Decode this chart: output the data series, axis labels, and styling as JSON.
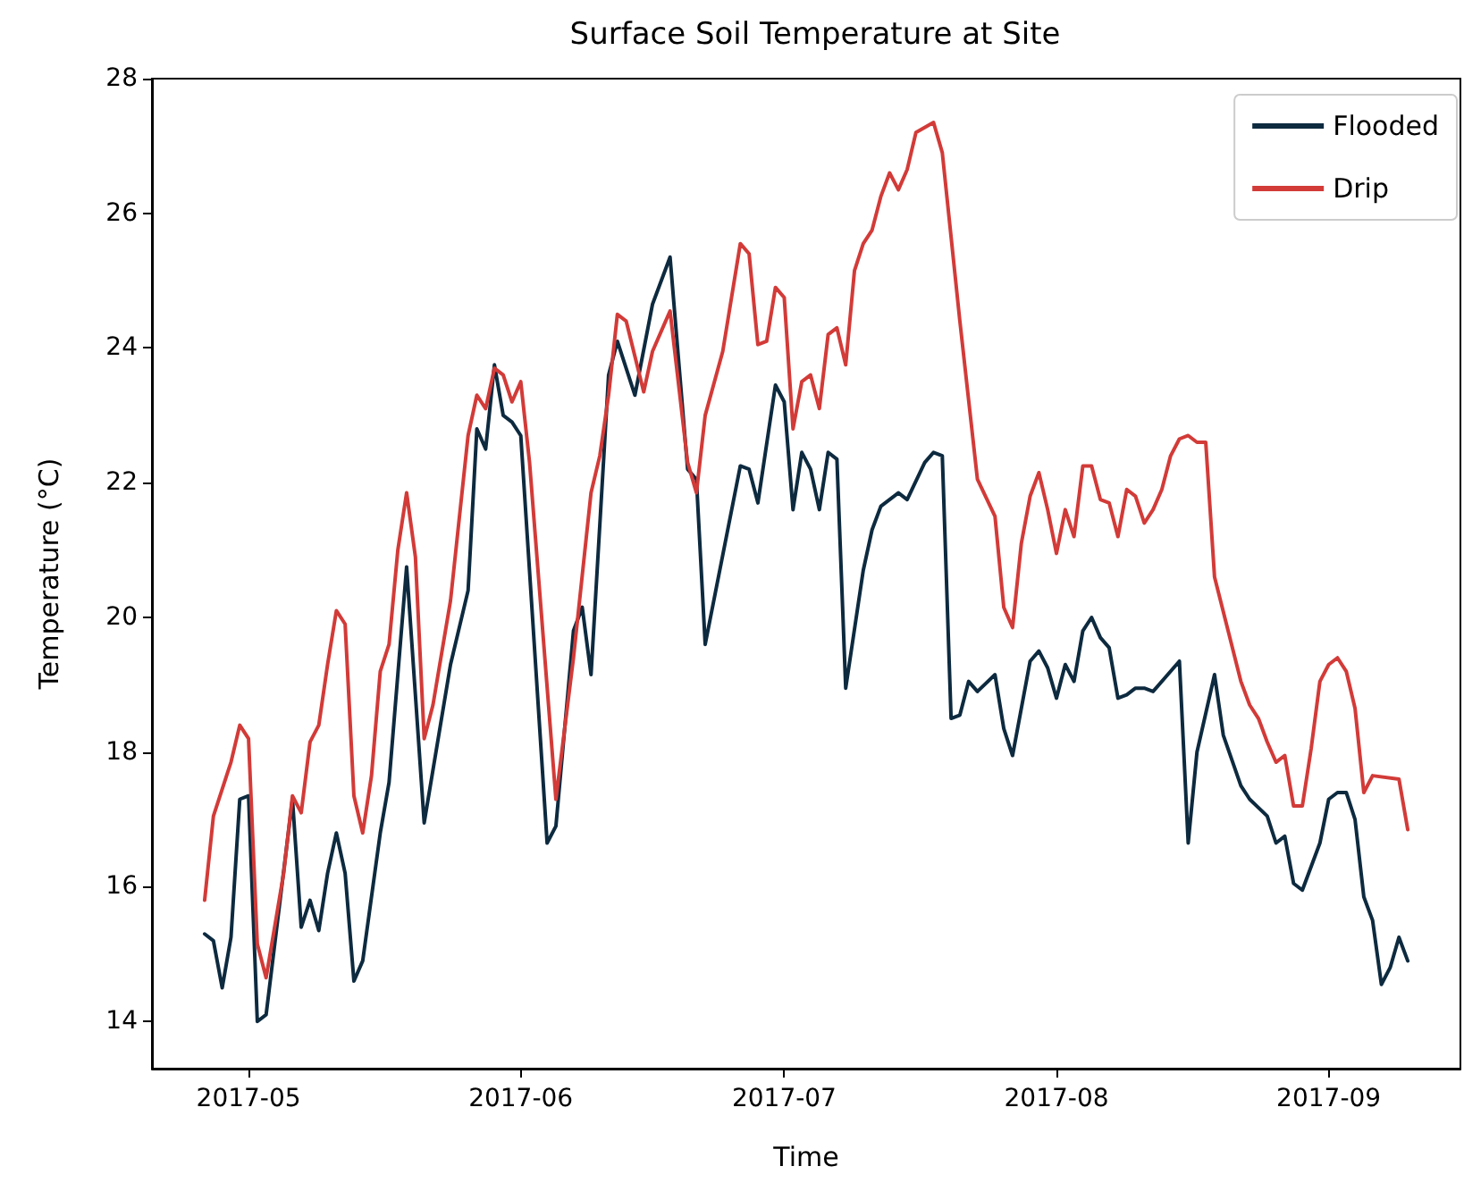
{
  "chart_data": {
    "type": "line",
    "title": "Surface Soil Temperature at Site",
    "xlabel": "Time",
    "ylabel": "Temperature (°C)",
    "xlim": [
      "2017-04-20",
      "2017-09-16"
    ],
    "xticks": [
      {
        "value": "2017-05-01",
        "label": "2017-05"
      },
      {
        "value": "2017-06-01",
        "label": "2017-06"
      },
      {
        "value": "2017-07-01",
        "label": "2017-07"
      },
      {
        "value": "2017-08-01",
        "label": "2017-08"
      },
      {
        "value": "2017-09-01",
        "label": "2017-09"
      }
    ],
    "ylim": [
      13.3,
      28
    ],
    "yticks": [
      14,
      16,
      18,
      20,
      22,
      24,
      26,
      28
    ],
    "grid": false,
    "legend": "top right",
    "marker": "none",
    "line_style": "solid",
    "series": [
      {
        "name": "Flooded",
        "color": "#0d2a3f",
        "x": [
          "2017-04-26",
          "2017-04-27",
          "2017-04-28",
          "2017-04-29",
          "2017-04-30",
          "2017-05-01",
          "2017-05-02",
          "2017-05-03",
          "2017-05-06",
          "2017-05-07",
          "2017-05-08",
          "2017-05-09",
          "2017-05-10",
          "2017-05-11",
          "2017-05-12",
          "2017-05-13",
          "2017-05-14",
          "2017-05-16",
          "2017-05-17",
          "2017-05-19",
          "2017-05-21",
          "2017-05-24",
          "2017-05-26",
          "2017-05-27",
          "2017-05-28",
          "2017-05-29",
          "2017-05-30",
          "2017-05-31",
          "2017-06-01",
          "2017-06-04",
          "2017-06-05",
          "2017-06-07",
          "2017-06-08",
          "2017-06-09",
          "2017-06-11",
          "2017-06-12",
          "2017-06-14",
          "2017-06-16",
          "2017-06-18",
          "2017-06-20",
          "2017-06-21",
          "2017-06-22",
          "2017-06-26",
          "2017-06-27",
          "2017-06-28",
          "2017-06-30",
          "2017-07-01",
          "2017-07-02",
          "2017-07-03",
          "2017-07-04",
          "2017-07-05",
          "2017-07-06",
          "2017-07-07",
          "2017-07-08",
          "2017-07-10",
          "2017-07-11",
          "2017-07-12",
          "2017-07-14",
          "2017-07-15",
          "2017-07-17",
          "2017-07-18",
          "2017-07-19",
          "2017-07-20",
          "2017-07-21",
          "2017-07-22",
          "2017-07-23",
          "2017-07-25",
          "2017-07-26",
          "2017-07-27",
          "2017-07-29",
          "2017-07-30",
          "2017-07-31",
          "2017-08-01",
          "2017-08-02",
          "2017-08-03",
          "2017-08-04",
          "2017-08-05",
          "2017-08-06",
          "2017-08-07",
          "2017-08-08",
          "2017-08-09",
          "2017-08-10",
          "2017-08-11",
          "2017-08-12",
          "2017-08-15",
          "2017-08-16",
          "2017-08-17",
          "2017-08-19",
          "2017-08-20",
          "2017-08-22",
          "2017-08-23",
          "2017-08-25",
          "2017-08-26",
          "2017-08-27",
          "2017-08-28",
          "2017-08-29",
          "2017-08-31",
          "2017-09-01",
          "2017-09-02",
          "2017-09-03",
          "2017-09-04",
          "2017-09-05",
          "2017-09-06",
          "2017-09-07",
          "2017-09-08",
          "2017-09-09",
          "2017-09-10"
        ],
        "values": [
          15.3,
          15.2,
          14.5,
          15.25,
          17.3,
          17.35,
          14.0,
          14.1,
          17.3,
          15.4,
          15.8,
          15.35,
          16.2,
          16.8,
          16.2,
          14.6,
          14.9,
          16.8,
          17.55,
          20.75,
          16.95,
          19.3,
          20.4,
          22.8,
          22.5,
          23.75,
          23.0,
          22.9,
          22.7,
          16.65,
          16.9,
          19.8,
          20.15,
          19.15,
          23.6,
          24.1,
          23.3,
          24.65,
          25.35,
          22.2,
          22.05,
          19.6,
          22.25,
          22.2,
          21.7,
          23.45,
          23.2,
          21.6,
          22.45,
          22.2,
          21.6,
          22.45,
          22.35,
          18.95,
          20.7,
          21.3,
          21.65,
          21.85,
          21.75,
          22.3,
          22.45,
          22.4,
          18.5,
          18.55,
          19.05,
          18.9,
          19.15,
          18.35,
          17.95,
          19.35,
          19.5,
          19.25,
          18.8,
          19.3,
          19.05,
          19.8,
          20.0,
          19.7,
          19.55,
          18.8,
          18.85,
          18.95,
          18.95,
          18.9,
          19.35,
          16.65,
          18.0,
          19.15,
          18.25,
          17.5,
          17.3,
          17.05,
          16.65,
          16.75,
          16.05,
          15.95,
          16.65,
          17.3,
          17.4,
          17.4,
          17.0,
          15.85,
          15.5,
          14.55,
          14.8,
          15.25,
          14.9
        ]
      },
      {
        "name": "Drip",
        "color": "#d23b38",
        "x": [
          "2017-04-26",
          "2017-04-27",
          "2017-04-29",
          "2017-04-30",
          "2017-05-01",
          "2017-05-02",
          "2017-05-03",
          "2017-05-05",
          "2017-05-06",
          "2017-05-07",
          "2017-05-08",
          "2017-05-09",
          "2017-05-10",
          "2017-05-11",
          "2017-05-12",
          "2017-05-13",
          "2017-05-14",
          "2017-05-15",
          "2017-05-16",
          "2017-05-17",
          "2017-05-18",
          "2017-05-19",
          "2017-05-20",
          "2017-05-21",
          "2017-05-22",
          "2017-05-24",
          "2017-05-26",
          "2017-05-27",
          "2017-05-28",
          "2017-05-29",
          "2017-05-30",
          "2017-05-31",
          "2017-06-01",
          "2017-06-02",
          "2017-06-05",
          "2017-06-07",
          "2017-06-09",
          "2017-06-10",
          "2017-06-11",
          "2017-06-12",
          "2017-06-13",
          "2017-06-15",
          "2017-06-16",
          "2017-06-17",
          "2017-06-18",
          "2017-06-20",
          "2017-06-21",
          "2017-06-22",
          "2017-06-24",
          "2017-06-26",
          "2017-06-27",
          "2017-06-28",
          "2017-06-29",
          "2017-06-30",
          "2017-07-01",
          "2017-07-02",
          "2017-07-03",
          "2017-07-04",
          "2017-07-05",
          "2017-07-06",
          "2017-07-07",
          "2017-07-08",
          "2017-07-09",
          "2017-07-10",
          "2017-07-11",
          "2017-07-12",
          "2017-07-13",
          "2017-07-14",
          "2017-07-15",
          "2017-07-16",
          "2017-07-18",
          "2017-07-19",
          "2017-07-21",
          "2017-07-23",
          "2017-07-25",
          "2017-07-26",
          "2017-07-27",
          "2017-07-28",
          "2017-07-29",
          "2017-07-30",
          "2017-07-31",
          "2017-08-01",
          "2017-08-02",
          "2017-08-03",
          "2017-08-04",
          "2017-08-05",
          "2017-08-06",
          "2017-08-07",
          "2017-08-08",
          "2017-08-09",
          "2017-08-10",
          "2017-08-11",
          "2017-08-12",
          "2017-08-13",
          "2017-08-14",
          "2017-08-15",
          "2017-08-16",
          "2017-08-17",
          "2017-08-18",
          "2017-08-19",
          "2017-08-22",
          "2017-08-23",
          "2017-08-24",
          "2017-08-25",
          "2017-08-26",
          "2017-08-27",
          "2017-08-28",
          "2017-08-29",
          "2017-08-30",
          "2017-08-31",
          "2017-09-01",
          "2017-09-02",
          "2017-09-03",
          "2017-09-04",
          "2017-09-05",
          "2017-09-06",
          "2017-09-09",
          "2017-09-10"
        ],
        "values": [
          15.8,
          17.05,
          17.85,
          18.4,
          18.2,
          15.15,
          14.65,
          16.2,
          17.35,
          17.1,
          18.15,
          18.4,
          19.3,
          20.1,
          19.9,
          17.35,
          16.8,
          17.65,
          19.2,
          19.6,
          21.0,
          21.85,
          20.9,
          18.2,
          18.7,
          20.25,
          22.7,
          23.3,
          23.1,
          23.7,
          23.6,
          23.2,
          23.5,
          22.3,
          17.3,
          19.4,
          21.85,
          22.4,
          23.3,
          24.5,
          24.4,
          23.35,
          23.95,
          24.25,
          24.55,
          22.3,
          21.85,
          23.0,
          23.95,
          25.55,
          25.4,
          24.05,
          24.1,
          24.9,
          24.75,
          22.8,
          23.5,
          23.6,
          23.1,
          24.2,
          24.3,
          23.75,
          25.15,
          25.55,
          25.75,
          26.25,
          26.6,
          26.35,
          26.65,
          27.2,
          27.35,
          26.9,
          24.4,
          22.05,
          21.5,
          20.15,
          19.85,
          21.1,
          21.8,
          22.15,
          21.6,
          20.95,
          21.6,
          21.2,
          22.25,
          22.25,
          21.75,
          21.7,
          21.2,
          21.9,
          21.8,
          21.4,
          21.6,
          21.9,
          22.4,
          22.65,
          22.7,
          22.6,
          22.6,
          20.6,
          19.05,
          18.7,
          18.5,
          18.15,
          17.85,
          17.95,
          17.2,
          17.2,
          18.05,
          19.05,
          19.3,
          19.4,
          19.2,
          18.65,
          17.4,
          17.65,
          17.6,
          16.85
        ]
      }
    ]
  }
}
